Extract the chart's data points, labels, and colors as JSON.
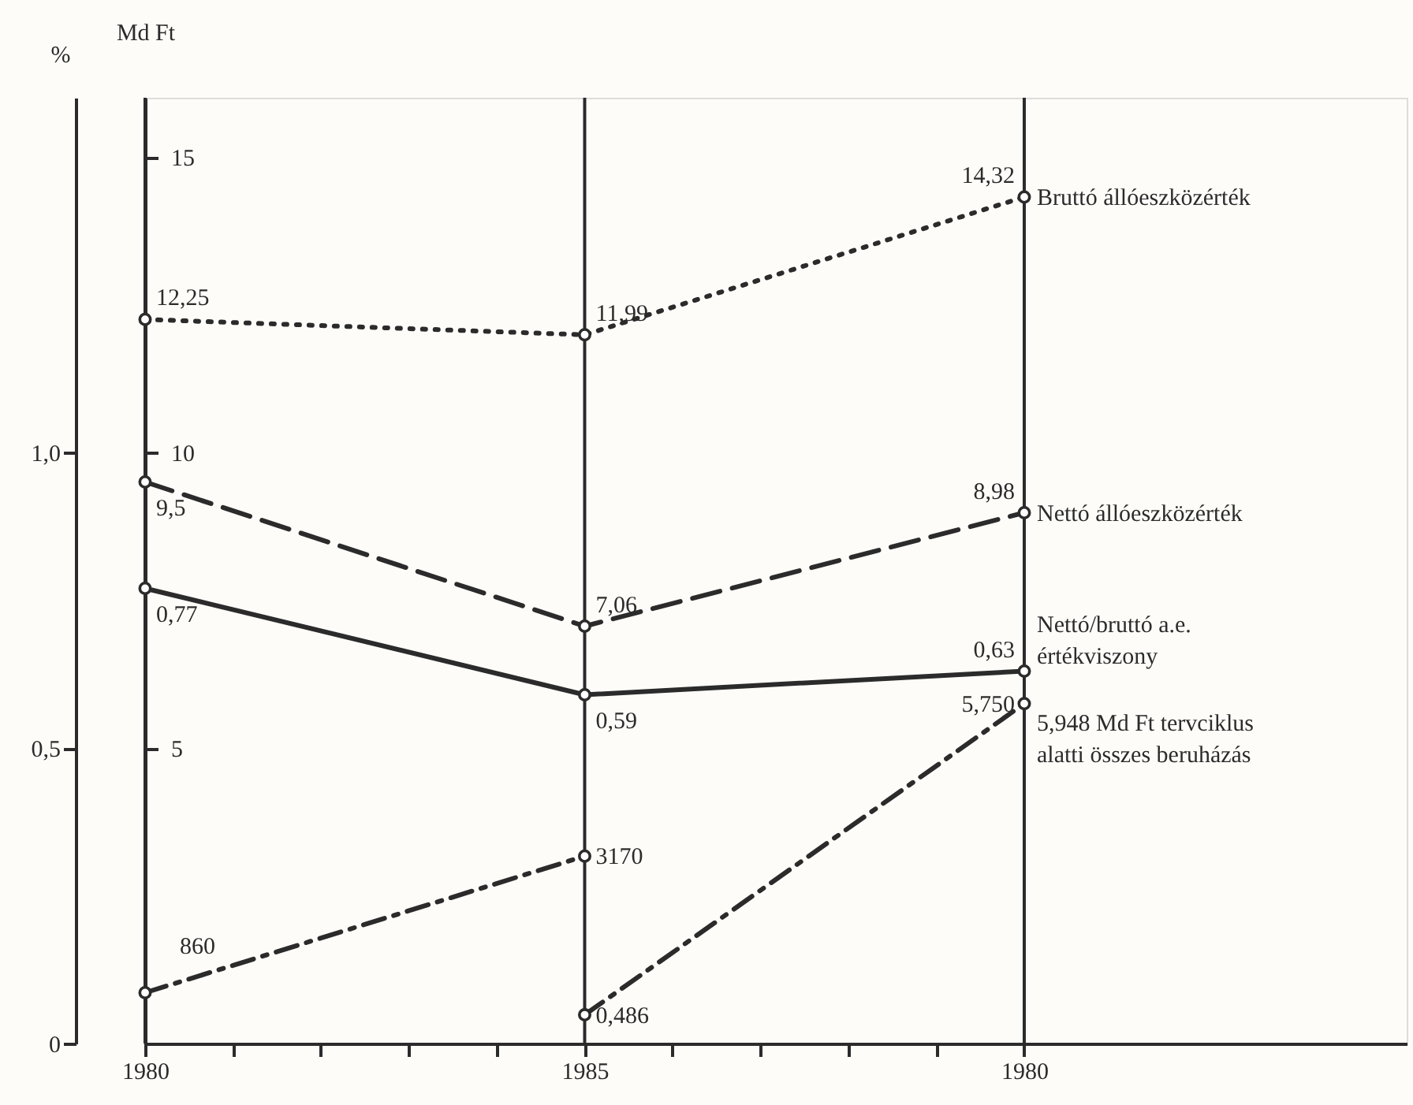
{
  "chart_data": {
    "type": "line",
    "categories": [
      "1980",
      "1985",
      "1980"
    ],
    "ylabel": "%",
    "ylim": [
      0,
      1.6
    ],
    "yticks": [
      0,
      {
        "value": 0.5,
        "label": "0,5"
      },
      {
        "value": 1,
        "label": "1,0"
      }
    ],
    "y2label": "Md Ft",
    "y2lim": [
      0,
      16
    ],
    "y2ticks": [
      5,
      10,
      15
    ],
    "annotations": [
      "860",
      "3170"
    ],
    "marker": "circle",
    "grid": "x",
    "legend": false,
    "series": [
      {
        "name": "Bruttó állóeszközérték",
        "color": "#2b2b2b",
        "axis": "y2",
        "line_style": "dotted",
        "values": [
          12.25,
          11.99,
          14.32
        ],
        "value_labels": [
          "12,25",
          "11,99",
          "14,32"
        ]
      },
      {
        "name": "Nettó állóeszközérték",
        "color": "#2b2b2b",
        "axis": "y2",
        "line_style": "dashed",
        "values": [
          9.5,
          7.06,
          8.98
        ],
        "value_labels": [
          "9,5",
          "7,06",
          "8,98"
        ]
      },
      {
        "name": "Nettó/bruttó a.e. értékviszony",
        "color": "#2b2b2b",
        "axis": "y",
        "line_style": "solid",
        "values": [
          0.77,
          0.59,
          0.63
        ],
        "value_labels": [
          "0,77",
          "0,59",
          "0,63"
        ]
      },
      {
        "color": "#2b2b2b",
        "axis": "y2",
        "line_style": "dashdot",
        "values": [
          0.86,
          3.17,
          null
        ]
      },
      {
        "name": "5,948 Md Ft tervciklus alatti összes beruházás",
        "color": "#2b2b2b",
        "axis": "y2",
        "line_style": "dashdot",
        "values": [
          null,
          0.486,
          5.75
        ],
        "value_labels": [
          null,
          "0,486",
          "5,750"
        ]
      }
    ]
  }
}
